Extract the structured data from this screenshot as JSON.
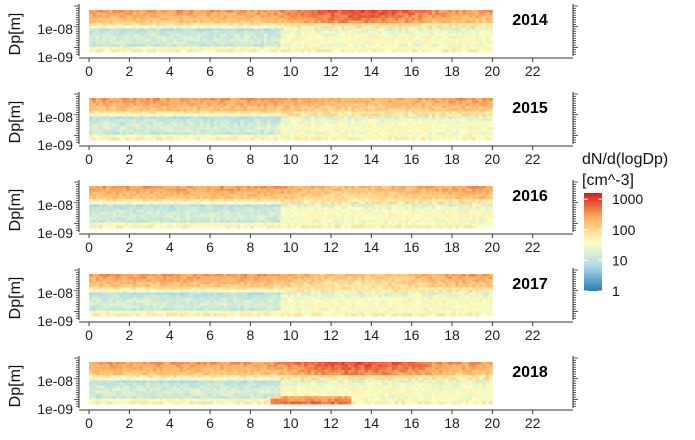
{
  "chart_data": {
    "type": "heatmap",
    "x_ticks": [
      "0",
      "2",
      "4",
      "6",
      "8",
      "10",
      "12",
      "14",
      "16",
      "18",
      "20",
      "22"
    ],
    "y_ticks": [
      "1e-08",
      "1e-09"
    ],
    "ylabel": "Dp[m]",
    "xlabel": "",
    "xlim": [
      -0.5,
      24
    ],
    "ylim_exponent": [
      -9.1,
      -7.2
    ],
    "legend": {
      "title_line1": "dN/d(logDp)",
      "title_line2": "[cm^-3]",
      "ticks": [
        "1000",
        "100",
        "10",
        "1"
      ],
      "tick_values": [
        1000,
        100,
        10,
        1
      ],
      "scale": "log",
      "colors": [
        "#2c7bb6",
        "#abd9e9",
        "#ffffbf",
        "#fdae61",
        "#d7191c"
      ]
    },
    "panels": [
      {
        "year": "2014",
        "approx_max": 1000,
        "description": "high concentration band at top, strongest 12-16 h"
      },
      {
        "year": "2015",
        "approx_max": 300
      },
      {
        "year": "2016",
        "approx_max": 250
      },
      {
        "year": "2017",
        "approx_max": 200
      },
      {
        "year": "2018",
        "approx_max": 1000
      }
    ]
  }
}
